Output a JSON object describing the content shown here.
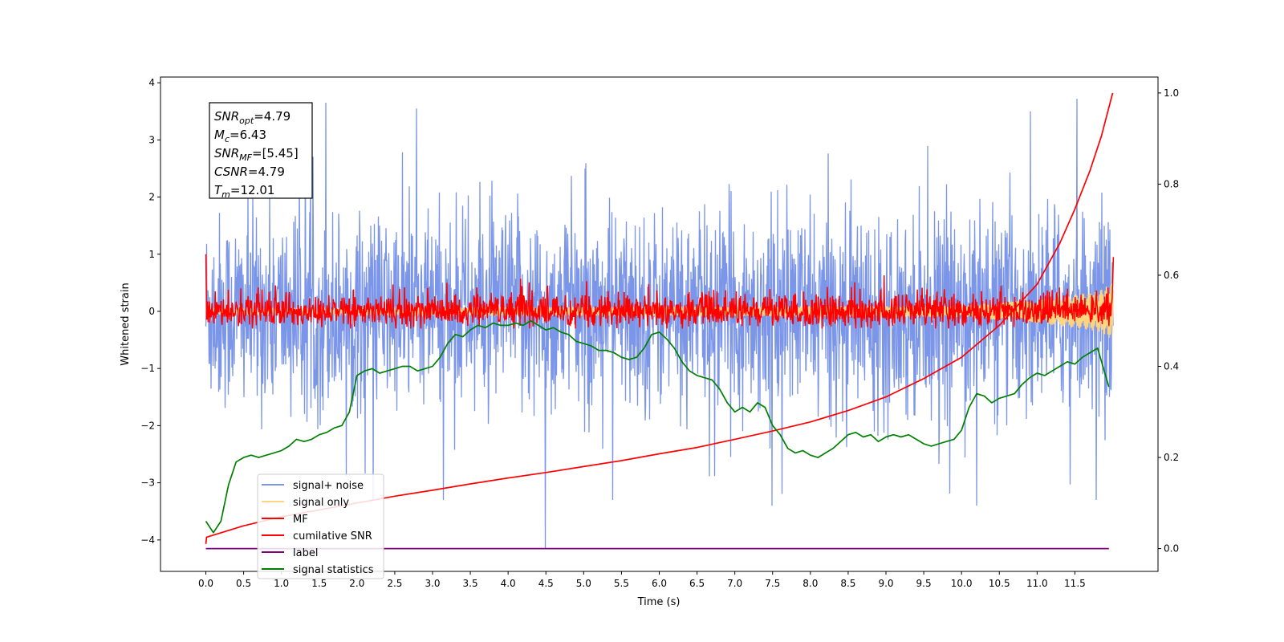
{
  "chart_data": {
    "type": "line",
    "title": "",
    "xlabel": "Time (s)",
    "ylabel": "Whitened strain",
    "xlim": [
      -0.6,
      12.6
    ],
    "ylim": [
      -4.55,
      4.1
    ],
    "ylim_right": [
      -0.05,
      1.035
    ],
    "x_ticks": [
      0.0,
      0.5,
      1.0,
      1.5,
      2.0,
      2.5,
      3.0,
      3.5,
      4.0,
      4.5,
      5.0,
      5.5,
      6.0,
      6.5,
      7.0,
      7.5,
      8.0,
      8.5,
      9.0,
      9.5,
      10.0,
      10.5,
      11.0,
      11.5
    ],
    "x_tick_labels": [
      "0.0",
      "0.5",
      "1.0",
      "1.5",
      "2.0",
      "2.5",
      "3.0",
      "3.5",
      "4.0",
      "4.5",
      "5.0",
      "5.5",
      "6.0",
      "6.5",
      "7.0",
      "7.5",
      "8.0",
      "8.5",
      "9.0",
      "9.5",
      "10.0",
      "10.5",
      "11.0",
      "11.5"
    ],
    "y_ticks_left": [
      -4,
      -3,
      -2,
      -1,
      0,
      1,
      2,
      3,
      4
    ],
    "y_tick_labels_left": [
      "−4",
      "−3",
      "−2",
      "−1",
      "0",
      "1",
      "2",
      "3",
      "4"
    ],
    "y_ticks_right": [
      0.0,
      0.2,
      0.4,
      0.6,
      0.8,
      1.0
    ],
    "y_tick_labels_right": [
      "0.0",
      "0.2",
      "0.4",
      "0.6",
      "0.8",
      "1.0"
    ],
    "grid": false,
    "legend_position": "lower-left",
    "annotation_box": {
      "lines": [
        {
          "main": "SNR",
          "sub": "opt",
          "value": "=4.79"
        },
        {
          "main": "M",
          "sub": "c",
          "value": "=6.43"
        },
        {
          "main": "SNR",
          "sub": "MF",
          "value": "=[5.45]"
        },
        {
          "main": "CSNR",
          "sub": "",
          "value": "=4.79"
        },
        {
          "main": "T",
          "sub": "m",
          "value": "=12.01"
        }
      ]
    },
    "series": [
      {
        "name": "signal+ noise",
        "color": "#7b95e8",
        "axis": "left",
        "description_style": "noise",
        "x_range": [
          0.0,
          12.01
        ],
        "envelope_y": [
          -3.4,
          3.65
        ],
        "notable_spikes": [
          {
            "x": 1.59,
            "y": 3.65
          },
          {
            "x": 2.79,
            "y": 3.55
          },
          {
            "x": 11.53,
            "y": 3.72
          },
          {
            "x": 4.49,
            "y": -4.15
          },
          {
            "x": 7.49,
            "y": -3.4
          },
          {
            "x": 10.2,
            "y": -3.4
          }
        ]
      },
      {
        "name": "signal only",
        "color": "#ffd580",
        "axis": "left",
        "x_range": [
          0.0,
          12.01
        ],
        "amplitude_envelope": [
          [
            0.0,
            0.05
          ],
          [
            10.0,
            0.1
          ],
          [
            11.0,
            0.2
          ],
          [
            11.8,
            0.35
          ],
          [
            12.0,
            0.5
          ]
        ]
      },
      {
        "name": "MF",
        "color": "#ff0000",
        "axis": "left",
        "description_style": "noise",
        "x_range": [
          0.0,
          12.01
        ],
        "envelope_y": [
          -0.3,
          0.9
        ],
        "start_value": 1.0,
        "end_value": 0.95
      },
      {
        "name": "cumilative SNR",
        "color": "#ff0000",
        "axis": "right",
        "x": [
          0.0,
          0.01,
          0.5,
          1.0,
          1.5,
          2.0,
          2.5,
          3.0,
          3.5,
          4.0,
          4.5,
          5.0,
          5.5,
          6.0,
          6.5,
          7.0,
          7.5,
          8.0,
          8.5,
          9.0,
          9.5,
          10.0,
          10.5,
          11.0,
          11.3,
          11.5,
          11.7,
          11.85,
          12.0
        ],
        "y": [
          0.01,
          0.025,
          0.05,
          0.07,
          0.085,
          0.1,
          0.115,
          0.128,
          0.142,
          0.155,
          0.167,
          0.18,
          0.193,
          0.208,
          0.222,
          0.24,
          0.258,
          0.278,
          0.303,
          0.333,
          0.373,
          0.42,
          0.49,
          0.58,
          0.67,
          0.745,
          0.83,
          0.905,
          1.0
        ]
      },
      {
        "name": "label",
        "color": "#800080",
        "axis": "right",
        "x": [
          0.0,
          11.95
        ],
        "y": [
          0.0,
          0.0
        ]
      },
      {
        "name": "signal statistics",
        "color": "#008000",
        "axis": "right",
        "x": [
          0.0,
          0.1,
          0.2,
          0.3,
          0.4,
          0.5,
          0.6,
          0.7,
          0.8,
          0.9,
          1.0,
          1.1,
          1.2,
          1.3,
          1.4,
          1.5,
          1.6,
          1.7,
          1.8,
          1.9,
          2.0,
          2.1,
          2.2,
          2.3,
          2.4,
          2.5,
          2.6,
          2.7,
          2.8,
          2.9,
          3.0,
          3.1,
          3.2,
          3.3,
          3.4,
          3.5,
          3.6,
          3.7,
          3.8,
          3.9,
          4.0,
          4.1,
          4.2,
          4.3,
          4.4,
          4.5,
          4.6,
          4.7,
          4.8,
          4.9,
          5.0,
          5.1,
          5.2,
          5.3,
          5.4,
          5.5,
          5.6,
          5.7,
          5.8,
          5.9,
          6.0,
          6.1,
          6.2,
          6.3,
          6.4,
          6.5,
          6.6,
          6.7,
          6.8,
          6.9,
          7.0,
          7.1,
          7.2,
          7.3,
          7.4,
          7.5,
          7.6,
          7.7,
          7.8,
          7.9,
          8.0,
          8.1,
          8.2,
          8.3,
          8.4,
          8.5,
          8.6,
          8.7,
          8.8,
          8.9,
          9.0,
          9.1,
          9.2,
          9.3,
          9.4,
          9.5,
          9.6,
          9.7,
          9.8,
          9.9,
          10.0,
          10.1,
          10.2,
          10.3,
          10.4,
          10.5,
          10.6,
          10.7,
          10.8,
          10.9,
          11.0,
          11.1,
          11.2,
          11.3,
          11.4,
          11.5,
          11.6,
          11.7,
          11.8,
          11.95
        ],
        "y": [
          0.06,
          0.035,
          0.06,
          0.14,
          0.19,
          0.2,
          0.205,
          0.2,
          0.205,
          0.21,
          0.215,
          0.225,
          0.24,
          0.235,
          0.24,
          0.25,
          0.255,
          0.265,
          0.27,
          0.3,
          0.38,
          0.39,
          0.395,
          0.385,
          0.39,
          0.395,
          0.4,
          0.4,
          0.39,
          0.395,
          0.4,
          0.42,
          0.45,
          0.47,
          0.465,
          0.48,
          0.49,
          0.485,
          0.495,
          0.49,
          0.49,
          0.495,
          0.49,
          0.5,
          0.49,
          0.48,
          0.485,
          0.475,
          0.47,
          0.455,
          0.45,
          0.445,
          0.435,
          0.435,
          0.43,
          0.42,
          0.415,
          0.42,
          0.44,
          0.47,
          0.475,
          0.46,
          0.44,
          0.41,
          0.39,
          0.38,
          0.375,
          0.37,
          0.35,
          0.32,
          0.3,
          0.31,
          0.3,
          0.32,
          0.31,
          0.27,
          0.25,
          0.22,
          0.21,
          0.215,
          0.205,
          0.2,
          0.21,
          0.22,
          0.235,
          0.25,
          0.255,
          0.245,
          0.25,
          0.235,
          0.245,
          0.25,
          0.245,
          0.25,
          0.24,
          0.23,
          0.225,
          0.23,
          0.235,
          0.24,
          0.26,
          0.31,
          0.34,
          0.335,
          0.32,
          0.33,
          0.335,
          0.34,
          0.36,
          0.375,
          0.385,
          0.38,
          0.39,
          0.4,
          0.41,
          0.405,
          0.42,
          0.43,
          0.44,
          0.355
        ]
      }
    ]
  }
}
